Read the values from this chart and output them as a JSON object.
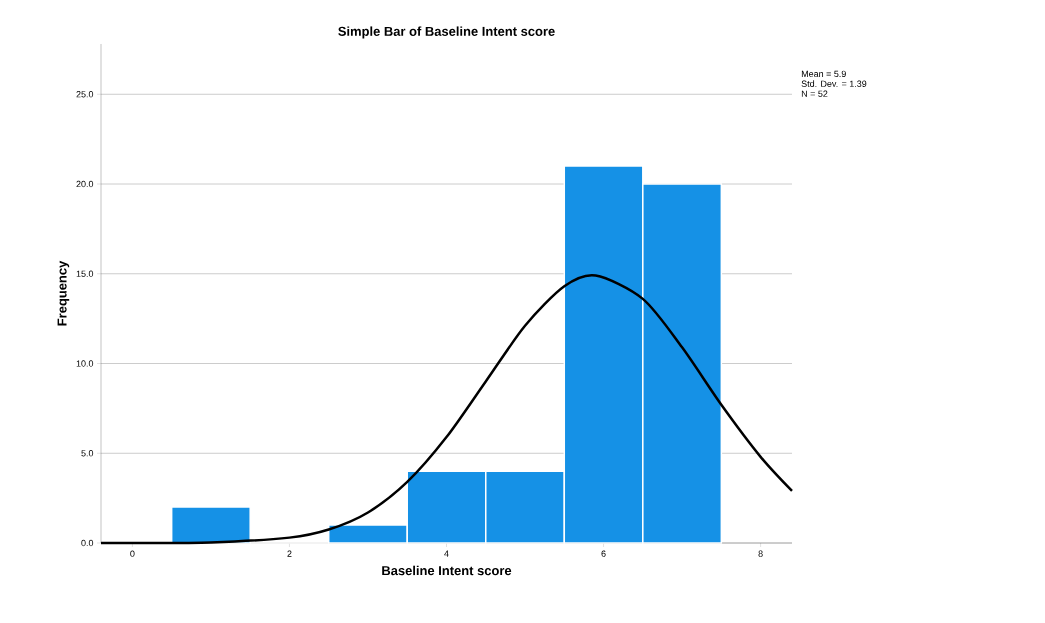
{
  "chart_data": {
    "type": "histogram",
    "title": "Simple Bar of Baseline Intent score",
    "xlabel": "Baseline Intent score",
    "ylabel": "Frequency",
    "series": [
      {
        "color": "#1591e6",
        "bins": [
          0.5,
          1.5,
          2.5,
          3.5,
          4.5,
          5.5,
          6.5,
          7.5
        ],
        "values": [
          2,
          0,
          1,
          4,
          4,
          21,
          20
        ]
      },
      {
        "type": "line",
        "color": "#000000",
        "x": [
          -0.4,
          0,
          1,
          2,
          2.5,
          3,
          3.5,
          4,
          4.5,
          5,
          5.5,
          5.9,
          6.5,
          7,
          7.5,
          8,
          8.4
        ],
        "values": [
          0.0,
          0.0,
          0.03,
          0.3,
          0.75,
          1.7,
          3.4,
          5.9,
          9.0,
          12.1,
          14.3,
          14.9,
          13.6,
          10.9,
          7.7,
          4.8,
          2.9
        ]
      }
    ],
    "xlim": [
      -0.4,
      8.4
    ],
    "ylim": [
      0,
      27.8
    ],
    "xticks": [
      0,
      2,
      4,
      6,
      8
    ],
    "yticks": [
      {
        "value": 0,
        "label": "0.0"
      },
      {
        "value": 5,
        "label": "5.0"
      },
      {
        "value": 10,
        "label": "10.0"
      },
      {
        "value": 15,
        "label": "15.0"
      },
      {
        "value": 20,
        "label": "20.0"
      },
      {
        "value": 25,
        "label": "25.0"
      }
    ],
    "grid": "y",
    "annotations": [
      "Mean = 5.9",
      "Std. Dev. = 1.39",
      "N = 52"
    ]
  }
}
